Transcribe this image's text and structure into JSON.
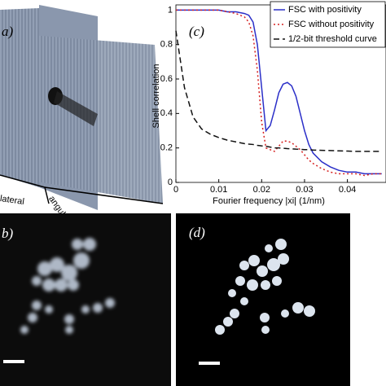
{
  "panels": {
    "a": {
      "label": "a)",
      "axis_labels": [
        "lateral",
        "angular"
      ]
    },
    "b": {
      "label": "b)"
    },
    "d": {
      "label": "(d)"
    }
  },
  "chart_data": {
    "type": "line",
    "label": "(c)",
    "xlabel": "Fourier frequency |xi| (1/nm)",
    "ylabel": "Shell correlation",
    "x": [
      0,
      0.002,
      0.004,
      0.006,
      0.008,
      0.01,
      0.012,
      0.014,
      0.016,
      0.017,
      0.018,
      0.019,
      0.02,
      0.021,
      0.022,
      0.023,
      0.024,
      0.025,
      0.026,
      0.027,
      0.028,
      0.029,
      0.03,
      0.031,
      0.032,
      0.034,
      0.036,
      0.038,
      0.04,
      0.042,
      0.044,
      0.046,
      0.048
    ],
    "series": [
      {
        "name": "FSC with positivity",
        "color": "#2b2fc8",
        "dash": "solid",
        "values": [
          1,
          1,
          1,
          1,
          1,
          1,
          0.99,
          0.99,
          0.98,
          0.97,
          0.93,
          0.8,
          0.55,
          0.3,
          0.33,
          0.42,
          0.52,
          0.57,
          0.58,
          0.56,
          0.5,
          0.4,
          0.3,
          0.22,
          0.17,
          0.12,
          0.09,
          0.07,
          0.06,
          0.06,
          0.05,
          0.05,
          0.05
        ]
      },
      {
        "name": "FSC without positivity",
        "color": "#d62020",
        "dash": "dotted",
        "values": [
          1,
          1,
          1,
          1,
          1,
          1,
          0.99,
          0.98,
          0.96,
          0.93,
          0.85,
          0.65,
          0.35,
          0.2,
          0.19,
          0.18,
          0.21,
          0.24,
          0.24,
          0.23,
          0.21,
          0.19,
          0.16,
          0.13,
          0.11,
          0.08,
          0.06,
          0.05,
          0.05,
          0.05,
          0.04,
          0.05,
          0.05
        ]
      },
      {
        "name": "1/2-bit threshold curve",
        "color": "#111111",
        "dash": "dashed",
        "values": [
          0.88,
          0.55,
          0.38,
          0.31,
          0.28,
          0.26,
          0.245,
          0.235,
          0.225,
          0.222,
          0.22,
          0.215,
          0.212,
          0.21,
          0.205,
          0.2,
          0.2,
          0.198,
          0.196,
          0.195,
          0.193,
          0.192,
          0.19,
          0.19,
          0.188,
          0.186,
          0.185,
          0.183,
          0.182,
          0.18,
          0.18,
          0.18,
          0.18
        ]
      }
    ],
    "xlim": [
      0,
      0.049
    ],
    "ylim": [
      0,
      1.03
    ],
    "xticks": [
      0,
      0.01,
      0.02,
      0.03,
      0.04
    ],
    "yticks": [
      0,
      0.2,
      0.4,
      0.6,
      0.8,
      1
    ],
    "legend": "upper right"
  }
}
